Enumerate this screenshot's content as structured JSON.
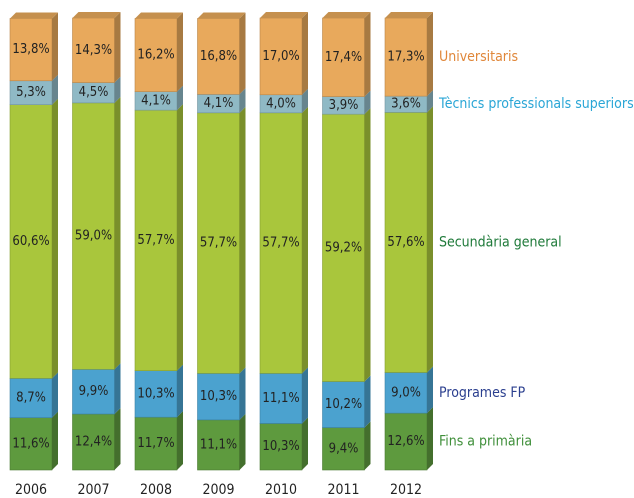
{
  "chart_data": {
    "type": "stacked_bar",
    "categories": [
      "2006",
      "2007",
      "2008",
      "2009",
      "2010",
      "2011",
      "2012"
    ],
    "series": [
      {
        "name": "Fins a primària",
        "color": "#5e9a3e",
        "text_color": "#3f8f3a",
        "values": [
          11.6,
          12.4,
          11.7,
          11.1,
          10.3,
          9.4,
          12.6
        ],
        "value_labels": [
          "11,6%",
          "12,4%",
          "11,7%",
          "11,1%",
          "10,3%",
          "9,4%",
          "12,6%"
        ]
      },
      {
        "name": "Programes FP",
        "color": "#4ba2cf",
        "text_color": "#2b3f8f",
        "values": [
          8.7,
          9.9,
          10.3,
          10.3,
          11.1,
          10.2,
          9.0
        ],
        "value_labels": [
          "8,7%",
          "9,9%",
          "10,3%",
          "10,3%",
          "11,1%",
          "10,2%",
          "9,0%"
        ]
      },
      {
        "name": "Secundària general",
        "color": "#a9c63c",
        "text_color": "#1f7a3a",
        "values": [
          60.6,
          59.0,
          57.7,
          57.7,
          57.7,
          59.2,
          57.6
        ],
        "value_labels": [
          "60,6%",
          "59,0%",
          "57,7%",
          "57,7%",
          "57,7%",
          "59,2%",
          "57,6%"
        ]
      },
      {
        "name": "Tècnics professionals superiors",
        "color": "#8fb9c5",
        "text_color": "#2aa6d6",
        "values": [
          5.3,
          4.5,
          4.1,
          4.1,
          4.0,
          3.9,
          3.6
        ],
        "value_labels": [
          "5,3%",
          "4,5%",
          "4,1%",
          "4,1%",
          "4,0%",
          "3,9%",
          "3,6%"
        ]
      },
      {
        "name": "Universitaris",
        "color": "#e8a95c",
        "text_color": "#e0873a",
        "values": [
          13.8,
          14.3,
          16.2,
          16.8,
          17.0,
          17.4,
          17.3
        ],
        "value_labels": [
          "13,8%",
          "14,3%",
          "16,2%",
          "16,8%",
          "17,0%",
          "17,4%",
          "17,3%"
        ]
      }
    ]
  }
}
